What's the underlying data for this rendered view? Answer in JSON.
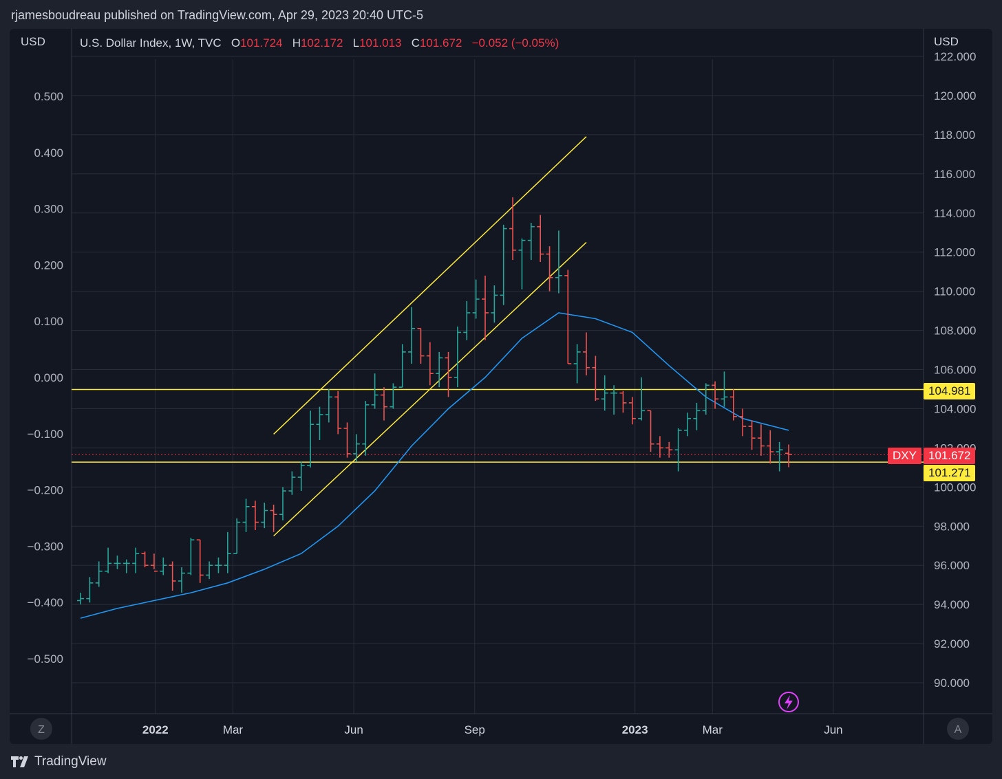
{
  "header": {
    "publisher": "rjamesboudreau published on TradingView.com, Apr 29, 2023 20:40 UTC-5"
  },
  "legend": {
    "symbol": "U.S. Dollar Index, 1W, TVC",
    "open_label": "O",
    "open": "101.724",
    "high_label": "H",
    "high": "102.172",
    "low_label": "L",
    "low": "101.013",
    "close_label": "C",
    "close": "101.672",
    "change": "−0.052 (−0.05%)"
  },
  "left_axis": {
    "currency": "USD",
    "ticks": [
      "0.500",
      "0.400",
      "0.300",
      "0.200",
      "0.100",
      "0.000",
      "−0.100",
      "−0.200",
      "−0.300",
      "−0.400",
      "−0.500"
    ]
  },
  "right_axis": {
    "currency": "USD",
    "ticks": [
      "122.000",
      "120.000",
      "118.000",
      "116.000",
      "114.000",
      "112.000",
      "110.000",
      "108.000",
      "106.000",
      "104.000",
      "102.000",
      "100.000",
      "98.000",
      "96.000",
      "94.000",
      "92.000",
      "90.000"
    ]
  },
  "time_axis": {
    "ticks": [
      "2022",
      "Mar",
      "Jun",
      "Sep",
      "2023",
      "Mar",
      "Jun"
    ]
  },
  "badges": {
    "symbol": "DXY",
    "last_price": "101.672",
    "level_high": "104.981",
    "level_low": "101.271"
  },
  "buttons": {
    "log_scale": "Z",
    "auto_scale": "A"
  },
  "footer": {
    "brand": "TradingView"
  },
  "colors": {
    "up": "#26a69a",
    "down": "#ef5350",
    "ma": "#2196f3",
    "level": "#ffeb3b",
    "background": "#131722"
  },
  "icons": {
    "brand_logo": "tradingview-logo-icon",
    "alert": "lightning-icon"
  },
  "chart_data": {
    "type": "ohlc",
    "title": "U.S. Dollar Index, 1W, TVC",
    "interval": "1W",
    "ylim": [
      89,
      123
    ],
    "y_scale": "linear",
    "grid": true,
    "bars": [
      {
        "d": "2021-11-05",
        "o": 94.2,
        "h": 94.6,
        "l": 94.0,
        "c": 94.3
      },
      {
        "d": "2021-11-12",
        "o": 94.3,
        "h": 95.4,
        "l": 94.1,
        "c": 95.1
      },
      {
        "d": "2021-11-19",
        "o": 95.1,
        "h": 96.2,
        "l": 94.9,
        "c": 95.7
      },
      {
        "d": "2021-11-26",
        "o": 95.7,
        "h": 96.9,
        "l": 95.6,
        "c": 96.1
      },
      {
        "d": "2021-12-03",
        "o": 96.1,
        "h": 96.5,
        "l": 95.8,
        "c": 96.1
      },
      {
        "d": "2021-12-10",
        "o": 96.1,
        "h": 96.3,
        "l": 95.6,
        "c": 96.1
      },
      {
        "d": "2021-12-17",
        "o": 96.1,
        "h": 96.9,
        "l": 95.6,
        "c": 96.6
      },
      {
        "d": "2021-12-24",
        "o": 96.6,
        "h": 96.7,
        "l": 95.9,
        "c": 96.0
      },
      {
        "d": "2021-12-31",
        "o": 96.0,
        "h": 96.6,
        "l": 95.8,
        "c": 95.7
      },
      {
        "d": "2022-01-07",
        "o": 95.7,
        "h": 96.4,
        "l": 95.5,
        "c": 96.0
      },
      {
        "d": "2022-01-14",
        "o": 96.0,
        "h": 96.2,
        "l": 94.7,
        "c": 95.2
      },
      {
        "d": "2022-01-21",
        "o": 95.2,
        "h": 95.9,
        "l": 94.6,
        "c": 95.6
      },
      {
        "d": "2022-01-28",
        "o": 95.6,
        "h": 97.4,
        "l": 95.5,
        "c": 97.3
      },
      {
        "d": "2022-02-04",
        "o": 97.3,
        "h": 97.3,
        "l": 95.1,
        "c": 95.5
      },
      {
        "d": "2022-02-11",
        "o": 95.5,
        "h": 96.2,
        "l": 95.3,
        "c": 96.0
      },
      {
        "d": "2022-02-18",
        "o": 96.0,
        "h": 96.4,
        "l": 95.6,
        "c": 96.0
      },
      {
        "d": "2022-02-25",
        "o": 96.0,
        "h": 97.7,
        "l": 95.6,
        "c": 96.6
      },
      {
        "d": "2022-03-04",
        "o": 96.6,
        "h": 98.4,
        "l": 96.6,
        "c": 98.2
      },
      {
        "d": "2022-03-11",
        "o": 98.2,
        "h": 99.4,
        "l": 97.7,
        "c": 99.0
      },
      {
        "d": "2022-03-18",
        "o": 99.0,
        "h": 99.3,
        "l": 97.8,
        "c": 98.2
      },
      {
        "d": "2022-03-25",
        "o": 98.2,
        "h": 99.2,
        "l": 97.9,
        "c": 98.8
      },
      {
        "d": "2022-04-01",
        "o": 98.8,
        "h": 99.1,
        "l": 97.7,
        "c": 98.6
      },
      {
        "d": "2022-04-08",
        "o": 98.6,
        "h": 100.0,
        "l": 98.3,
        "c": 99.8
      },
      {
        "d": "2022-04-15",
        "o": 99.8,
        "h": 100.8,
        "l": 99.6,
        "c": 100.5
      },
      {
        "d": "2022-04-22",
        "o": 100.5,
        "h": 101.3,
        "l": 99.8,
        "c": 101.1
      },
      {
        "d": "2022-04-29",
        "o": 101.1,
        "h": 103.9,
        "l": 101.0,
        "c": 103.2
      },
      {
        "d": "2022-05-06",
        "o": 103.2,
        "h": 104.1,
        "l": 102.4,
        "c": 103.7
      },
      {
        "d": "2022-05-13",
        "o": 103.7,
        "h": 105.0,
        "l": 103.3,
        "c": 104.6
      },
      {
        "d": "2022-05-20",
        "o": 104.6,
        "h": 104.9,
        "l": 102.7,
        "c": 103.0
      },
      {
        "d": "2022-05-27",
        "o": 103.0,
        "h": 103.3,
        "l": 101.5,
        "c": 101.7
      },
      {
        "d": "2022-06-03",
        "o": 101.7,
        "h": 102.7,
        "l": 101.3,
        "c": 102.2
      },
      {
        "d": "2022-06-10",
        "o": 102.2,
        "h": 104.4,
        "l": 101.6,
        "c": 104.2
      },
      {
        "d": "2022-06-17",
        "o": 104.2,
        "h": 105.8,
        "l": 104.0,
        "c": 104.7
      },
      {
        "d": "2022-06-24",
        "o": 104.7,
        "h": 105.1,
        "l": 103.4,
        "c": 104.1
      },
      {
        "d": "2022-07-01",
        "o": 104.1,
        "h": 105.3,
        "l": 104.0,
        "c": 105.1
      },
      {
        "d": "2022-07-08",
        "o": 105.1,
        "h": 107.3,
        "l": 105.1,
        "c": 106.9
      },
      {
        "d": "2022-07-15",
        "o": 106.9,
        "h": 109.2,
        "l": 106.3,
        "c": 108.1
      },
      {
        "d": "2022-07-22",
        "o": 108.1,
        "h": 108.1,
        "l": 106.3,
        "c": 106.7
      },
      {
        "d": "2022-07-29",
        "o": 106.7,
        "h": 107.4,
        "l": 105.2,
        "c": 105.8
      },
      {
        "d": "2022-08-05",
        "o": 105.8,
        "h": 106.9,
        "l": 105.1,
        "c": 106.6
      },
      {
        "d": "2022-08-12",
        "o": 106.6,
        "h": 106.9,
        "l": 104.6,
        "c": 105.6
      },
      {
        "d": "2022-08-19",
        "o": 105.6,
        "h": 108.2,
        "l": 105.1,
        "c": 107.9
      },
      {
        "d": "2022-08-26",
        "o": 107.9,
        "h": 109.5,
        "l": 107.5,
        "c": 108.9
      },
      {
        "d": "2022-09-02",
        "o": 108.9,
        "h": 110.6,
        "l": 108.6,
        "c": 109.6
      },
      {
        "d": "2022-09-09",
        "o": 109.6,
        "h": 110.8,
        "l": 107.5,
        "c": 108.9
      },
      {
        "d": "2022-09-16",
        "o": 108.9,
        "h": 110.3,
        "l": 108.4,
        "c": 109.8
      },
      {
        "d": "2022-09-23",
        "o": 109.8,
        "h": 113.4,
        "l": 109.3,
        "c": 113.2
      },
      {
        "d": "2022-09-30",
        "o": 113.2,
        "h": 114.8,
        "l": 111.6,
        "c": 112.1
      },
      {
        "d": "2022-10-07",
        "o": 112.1,
        "h": 112.7,
        "l": 110.1,
        "c": 112.6
      },
      {
        "d": "2022-10-14",
        "o": 112.6,
        "h": 113.5,
        "l": 111.6,
        "c": 113.3
      },
      {
        "d": "2022-10-21",
        "o": 113.3,
        "h": 113.9,
        "l": 111.5,
        "c": 111.9
      },
      {
        "d": "2022-10-28",
        "o": 111.9,
        "h": 112.3,
        "l": 110.0,
        "c": 110.7
      },
      {
        "d": "2022-11-04",
        "o": 110.7,
        "h": 113.1,
        "l": 109.9,
        "c": 110.8
      },
      {
        "d": "2022-11-11",
        "o": 110.8,
        "h": 111.1,
        "l": 106.3,
        "c": 106.3
      },
      {
        "d": "2022-11-18",
        "o": 106.3,
        "h": 107.3,
        "l": 105.3,
        "c": 106.9
      },
      {
        "d": "2022-11-25",
        "o": 106.9,
        "h": 107.9,
        "l": 105.7,
        "c": 106.1
      },
      {
        "d": "2022-12-02",
        "o": 106.1,
        "h": 106.7,
        "l": 104.4,
        "c": 104.5
      },
      {
        "d": "2022-12-09",
        "o": 104.5,
        "h": 105.7,
        "l": 103.9,
        "c": 104.8
      },
      {
        "d": "2022-12-16",
        "o": 104.8,
        "h": 105.2,
        "l": 103.7,
        "c": 104.8
      },
      {
        "d": "2022-12-23",
        "o": 104.8,
        "h": 104.9,
        "l": 103.8,
        "c": 104.3
      },
      {
        "d": "2022-12-30",
        "o": 104.3,
        "h": 104.6,
        "l": 103.2,
        "c": 103.5
      },
      {
        "d": "2023-01-06",
        "o": 103.5,
        "h": 105.6,
        "l": 103.4,
        "c": 103.9
      },
      {
        "d": "2023-01-13",
        "o": 103.9,
        "h": 103.9,
        "l": 101.8,
        "c": 102.2
      },
      {
        "d": "2023-01-20",
        "o": 102.2,
        "h": 102.6,
        "l": 101.5,
        "c": 102.0
      },
      {
        "d": "2023-01-27",
        "o": 102.0,
        "h": 102.3,
        "l": 101.5,
        "c": 101.9
      },
      {
        "d": "2023-02-03",
        "o": 101.9,
        "h": 103.0,
        "l": 100.8,
        "c": 102.9
      },
      {
        "d": "2023-02-10",
        "o": 102.9,
        "h": 103.8,
        "l": 102.6,
        "c": 103.5
      },
      {
        "d": "2023-02-17",
        "o": 103.5,
        "h": 104.3,
        "l": 102.9,
        "c": 103.9
      },
      {
        "d": "2023-02-24",
        "o": 103.9,
        "h": 105.3,
        "l": 103.7,
        "c": 105.2
      },
      {
        "d": "2023-03-03",
        "o": 105.2,
        "h": 105.4,
        "l": 104.0,
        "c": 104.5
      },
      {
        "d": "2023-03-10",
        "o": 104.5,
        "h": 105.9,
        "l": 104.1,
        "c": 104.6
      },
      {
        "d": "2023-03-17",
        "o": 104.6,
        "h": 105.0,
        "l": 103.4,
        "c": 103.6
      },
      {
        "d": "2023-03-24",
        "o": 103.6,
        "h": 104.0,
        "l": 102.6,
        "c": 103.1
      },
      {
        "d": "2023-03-31",
        "o": 103.1,
        "h": 103.4,
        "l": 101.9,
        "c": 102.5
      },
      {
        "d": "2023-04-07",
        "o": 102.5,
        "h": 103.2,
        "l": 101.6,
        "c": 102.1
      },
      {
        "d": "2023-04-14",
        "o": 102.1,
        "h": 102.9,
        "l": 101.2,
        "c": 101.8
      },
      {
        "d": "2023-04-21",
        "o": 101.8,
        "h": 102.3,
        "l": 100.8,
        "c": 101.9
      },
      {
        "d": "2023-04-28",
        "o": 101.724,
        "h": 102.172,
        "l": 101.013,
        "c": 101.672
      }
    ],
    "moving_average": [
      {
        "d": "2021-11-05",
        "v": 93.3
      },
      {
        "d": "2021-12-03",
        "v": 93.8
      },
      {
        "d": "2021-12-31",
        "v": 94.2
      },
      {
        "d": "2022-01-28",
        "v": 94.6
      },
      {
        "d": "2022-02-25",
        "v": 95.1
      },
      {
        "d": "2022-03-25",
        "v": 95.8
      },
      {
        "d": "2022-04-22",
        "v": 96.6
      },
      {
        "d": "2022-05-20",
        "v": 98.0
      },
      {
        "d": "2022-06-17",
        "v": 99.8
      },
      {
        "d": "2022-07-15",
        "v": 102.1
      },
      {
        "d": "2022-08-12",
        "v": 104.0
      },
      {
        "d": "2022-09-09",
        "v": 105.6
      },
      {
        "d": "2022-10-07",
        "v": 107.6
      },
      {
        "d": "2022-11-04",
        "v": 108.9
      },
      {
        "d": "2022-12-02",
        "v": 108.6
      },
      {
        "d": "2022-12-30",
        "v": 107.9
      },
      {
        "d": "2023-01-27",
        "v": 106.2
      },
      {
        "d": "2023-02-24",
        "v": 104.6
      },
      {
        "d": "2023-03-24",
        "v": 103.5
      },
      {
        "d": "2023-04-28",
        "v": 102.9
      }
    ],
    "horizontal_levels": [
      104.981,
      101.271
    ],
    "trendlines": [
      {
        "from": {
          "d": "2022-04-01",
          "v": 102.7
        },
        "to": {
          "d": "2022-11-25",
          "v": 117.9
        }
      },
      {
        "from": {
          "d": "2022-04-01",
          "v": 97.5
        },
        "to": {
          "d": "2022-11-25",
          "v": 112.5
        }
      }
    ],
    "last_price": 101.672
  }
}
